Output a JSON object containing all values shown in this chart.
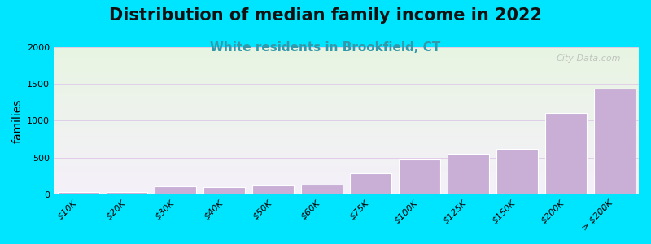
{
  "title": "Distribution of median family income in 2022",
  "subtitle": "White residents in Brookfield, CT",
  "ylabel": "families",
  "categories": [
    "$10K",
    "$20K",
    "$30K",
    "$40K",
    "$50K",
    "$60K",
    "$75K",
    "$100K",
    "$125K",
    "$150K",
    "$200K",
    "> $200K"
  ],
  "values": [
    30,
    25,
    110,
    100,
    115,
    130,
    280,
    475,
    555,
    615,
    1100,
    1440
  ],
  "bar_color": "#c9aed6",
  "bar_edge_color": "#ffffff",
  "background_outer": "#00e5ff",
  "plot_bg_top": "#e8f5e2",
  "plot_bg_bottom": "#f5f0fa",
  "title_fontsize": 15,
  "subtitle_fontsize": 11,
  "subtitle_color": "#3399aa",
  "ylabel_fontsize": 10,
  "tick_fontsize": 8,
  "ylim": [
    0,
    2000
  ],
  "yticks": [
    0,
    500,
    1000,
    1500,
    2000
  ],
  "watermark": "City-Data.com"
}
